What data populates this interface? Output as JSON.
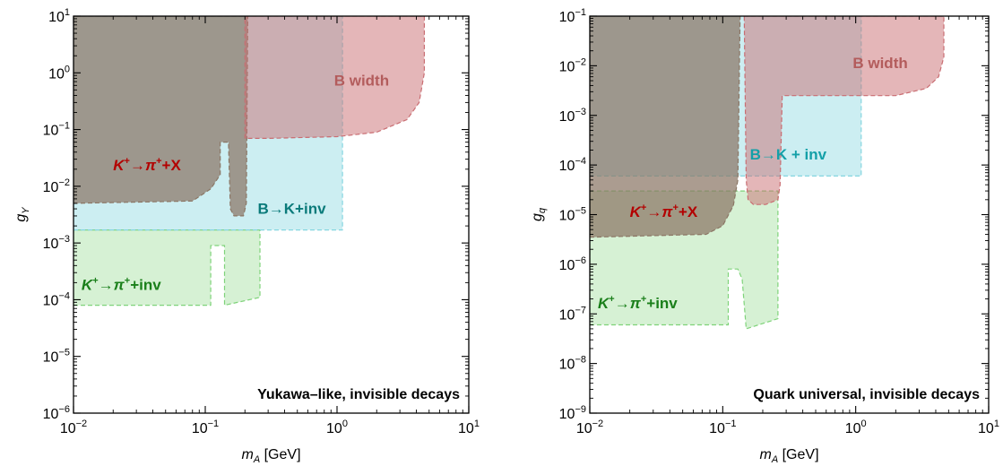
{
  "chart_data": [
    {
      "type": "area",
      "title": "",
      "annotation": "Yukawa–like, invisible decays",
      "xlabel": {
        "main": "m",
        "sub": "A",
        "unit": " [GeV]"
      },
      "ylabel": {
        "main": "g",
        "sub": "Y"
      },
      "xscale": "log",
      "yscale": "log",
      "xlim": [
        0.01,
        10
      ],
      "ylim": [
        1e-06,
        10
      ],
      "xticks": [
        {
          "base": "10",
          "exp": "−2"
        },
        {
          "base": "10",
          "exp": "−1"
        },
        {
          "base": "10",
          "exp": "0"
        },
        {
          "base": "10",
          "exp": "1"
        }
      ],
      "yticks": [
        {
          "base": "10",
          "exp": "−6"
        },
        {
          "base": "10",
          "exp": "−5"
        },
        {
          "base": "10",
          "exp": "−4"
        },
        {
          "base": "10",
          "exp": "−3"
        },
        {
          "base": "10",
          "exp": "−2"
        },
        {
          "base": "10",
          "exp": "−1"
        },
        {
          "base": "10",
          "exp": "0"
        },
        {
          "base": "10",
          "exp": "1"
        }
      ],
      "grid": false,
      "colors": {
        "kpi_invisible": "#7fd37a",
        "k_pi_x": "#8b7665",
        "b_to_k": "#86d6e0",
        "b_width": "#c96d72"
      },
      "series": [
        {
          "key": "kpi_invisible",
          "label": {
            "pre": "K",
            "sup1": "+",
            "arrow": "→",
            "mid": "π",
            "sup2": "+",
            "post": "+inv"
          },
          "label_color": "#1a7f1a",
          "label_at": [
            0.0115,
            0.00015
          ],
          "fill_opacity": 0.32,
          "points": [
            [
              0.01,
              8e-05
            ],
            [
              0.11,
              8e-05
            ],
            [
              0.11,
              0.0009
            ],
            [
              0.14,
              0.0009
            ],
            [
              0.14,
              8e-05
            ],
            [
              0.26,
              0.00011
            ],
            [
              0.26,
              0.0017
            ],
            [
              0.01,
              0.0017
            ]
          ]
        },
        {
          "key": "b_to_k",
          "label": "B→K+inv",
          "label_color": "#0a7a7a",
          "label_at": [
            0.25,
            0.0033
          ],
          "fill_opacity": 0.42,
          "points": [
            [
              0.01,
              0.0017
            ],
            [
              1.1,
              0.0017
            ],
            [
              1.1,
              10
            ],
            [
              0.01,
              10
            ]
          ]
        },
        {
          "key": "k_pi_x",
          "label": {
            "pre": "K",
            "sup1": "+",
            "arrow": "→",
            "mid": "π",
            "sup2": "+",
            "post": "+X"
          },
          "label_color": "#b30000",
          "label_at": [
            0.02,
            0.019
          ],
          "fill_opacity": 0.72,
          "points": [
            [
              0.01,
              0.005
            ],
            [
              0.08,
              0.0055
            ],
            [
              0.11,
              0.009
            ],
            [
              0.13,
              0.016
            ],
            [
              0.13,
              0.06
            ],
            [
              0.15,
              0.06
            ],
            [
              0.155,
              0.004
            ],
            [
              0.165,
              0.003
            ],
            [
              0.195,
              0.003
            ],
            [
              0.205,
              0.005
            ],
            [
              0.21,
              10
            ],
            [
              0.01,
              10
            ]
          ]
        },
        {
          "key": "b_width",
          "label": "B width",
          "label_color": "#b35c5c",
          "label_at": [
            0.95,
            0.6
          ],
          "fill_opacity": 0.5,
          "points": [
            [
              0.2,
              10
            ],
            [
              4.6,
              10
            ],
            [
              4.6,
              1
            ],
            [
              4.2,
              0.3
            ],
            [
              3.4,
              0.15
            ],
            [
              2,
              0.09
            ],
            [
              1,
              0.075
            ],
            [
              0.3,
              0.07
            ],
            [
              0.2,
              0.07
            ]
          ]
        }
      ]
    },
    {
      "type": "area",
      "title": "",
      "annotation": "Quark universal, invisible decays",
      "xlabel": {
        "main": "m",
        "sub": "A",
        "unit": " [GeV]"
      },
      "ylabel": {
        "main": "g",
        "sub": "q"
      },
      "xscale": "log",
      "yscale": "log",
      "xlim": [
        0.01,
        10
      ],
      "ylim": [
        1e-09,
        0.1
      ],
      "xticks": [
        {
          "base": "10",
          "exp": "−2"
        },
        {
          "base": "10",
          "exp": "−1"
        },
        {
          "base": "10",
          "exp": "0"
        },
        {
          "base": "10",
          "exp": "1"
        }
      ],
      "yticks": [
        {
          "base": "10",
          "exp": "−9"
        },
        {
          "base": "10",
          "exp": "−8"
        },
        {
          "base": "10",
          "exp": "−7"
        },
        {
          "base": "10",
          "exp": "−6"
        },
        {
          "base": "10",
          "exp": "−5"
        },
        {
          "base": "10",
          "exp": "−4"
        },
        {
          "base": "10",
          "exp": "−3"
        },
        {
          "base": "10",
          "exp": "−2"
        },
        {
          "base": "10",
          "exp": "−1"
        }
      ],
      "grid": false,
      "colors": {
        "kpi_invisible": "#7fd37a",
        "k_pi_x": "#8b7665",
        "b_to_k": "#86d6e0",
        "b_width": "#c96d72"
      },
      "series": [
        {
          "key": "kpi_invisible",
          "label": {
            "pre": "K",
            "sup1": "+",
            "arrow": "→",
            "mid": "π",
            "sup2": "+",
            "post": "+inv"
          },
          "label_color": "#1a7f1a",
          "label_at": [
            0.0115,
            1.3e-07
          ],
          "fill_opacity": 0.32,
          "points": [
            [
              0.01,
              6e-08
            ],
            [
              0.11,
              6e-08
            ],
            [
              0.11,
              8e-07
            ],
            [
              0.13,
              8e-07
            ],
            [
              0.14,
              5e-07
            ],
            [
              0.15,
              5e-08
            ],
            [
              0.26,
              8e-08
            ],
            [
              0.26,
              3e-05
            ],
            [
              0.01,
              3e-05
            ]
          ]
        },
        {
          "key": "b_to_k",
          "label": "B→K + inv",
          "label_color": "#14a0a8",
          "label_at": [
            0.16,
            0.00013
          ],
          "fill_opacity": 0.42,
          "points": [
            [
              0.01,
              6e-05
            ],
            [
              1.1,
              6e-05
            ],
            [
              1.1,
              0.1
            ],
            [
              0.01,
              0.1
            ]
          ]
        },
        {
          "key": "k_pi_x",
          "label": {
            "pre": "K",
            "sup1": "+",
            "arrow": "→",
            "mid": "π",
            "sup2": "+",
            "post": "+X"
          },
          "label_color": "#b30000",
          "label_at": [
            0.02,
            9e-06
          ],
          "fill_opacity": 0.72,
          "points": [
            [
              0.01,
              3.5e-06
            ],
            [
              0.075,
              4e-06
            ],
            [
              0.1,
              6e-06
            ],
            [
              0.12,
              1.5e-05
            ],
            [
              0.13,
              5e-05
            ],
            [
              0.135,
              0.1
            ],
            [
              0.01,
              0.1
            ]
          ]
        },
        {
          "key": "b_width",
          "label": "B width",
          "label_color": "#b35c5c",
          "label_at": [
            0.95,
            0.009
          ],
          "fill_opacity": 0.5,
          "points": [
            [
              0.145,
              0.1
            ],
            [
              4.6,
              0.1
            ],
            [
              4.6,
              0.015
            ],
            [
              4.2,
              0.006
            ],
            [
              3.4,
              0.0035
            ],
            [
              2,
              0.0025
            ],
            [
              1,
              0.0025
            ],
            [
              0.28,
              0.0025
            ],
            [
              0.27,
              4e-05
            ],
            [
              0.26,
              2e-05
            ],
            [
              0.21,
              1.6e-05
            ],
            [
              0.17,
              1.6e-05
            ],
            [
              0.155,
              2e-05
            ],
            [
              0.15,
              5e-05
            ],
            [
              0.145,
              0.1
            ]
          ]
        }
      ]
    }
  ]
}
